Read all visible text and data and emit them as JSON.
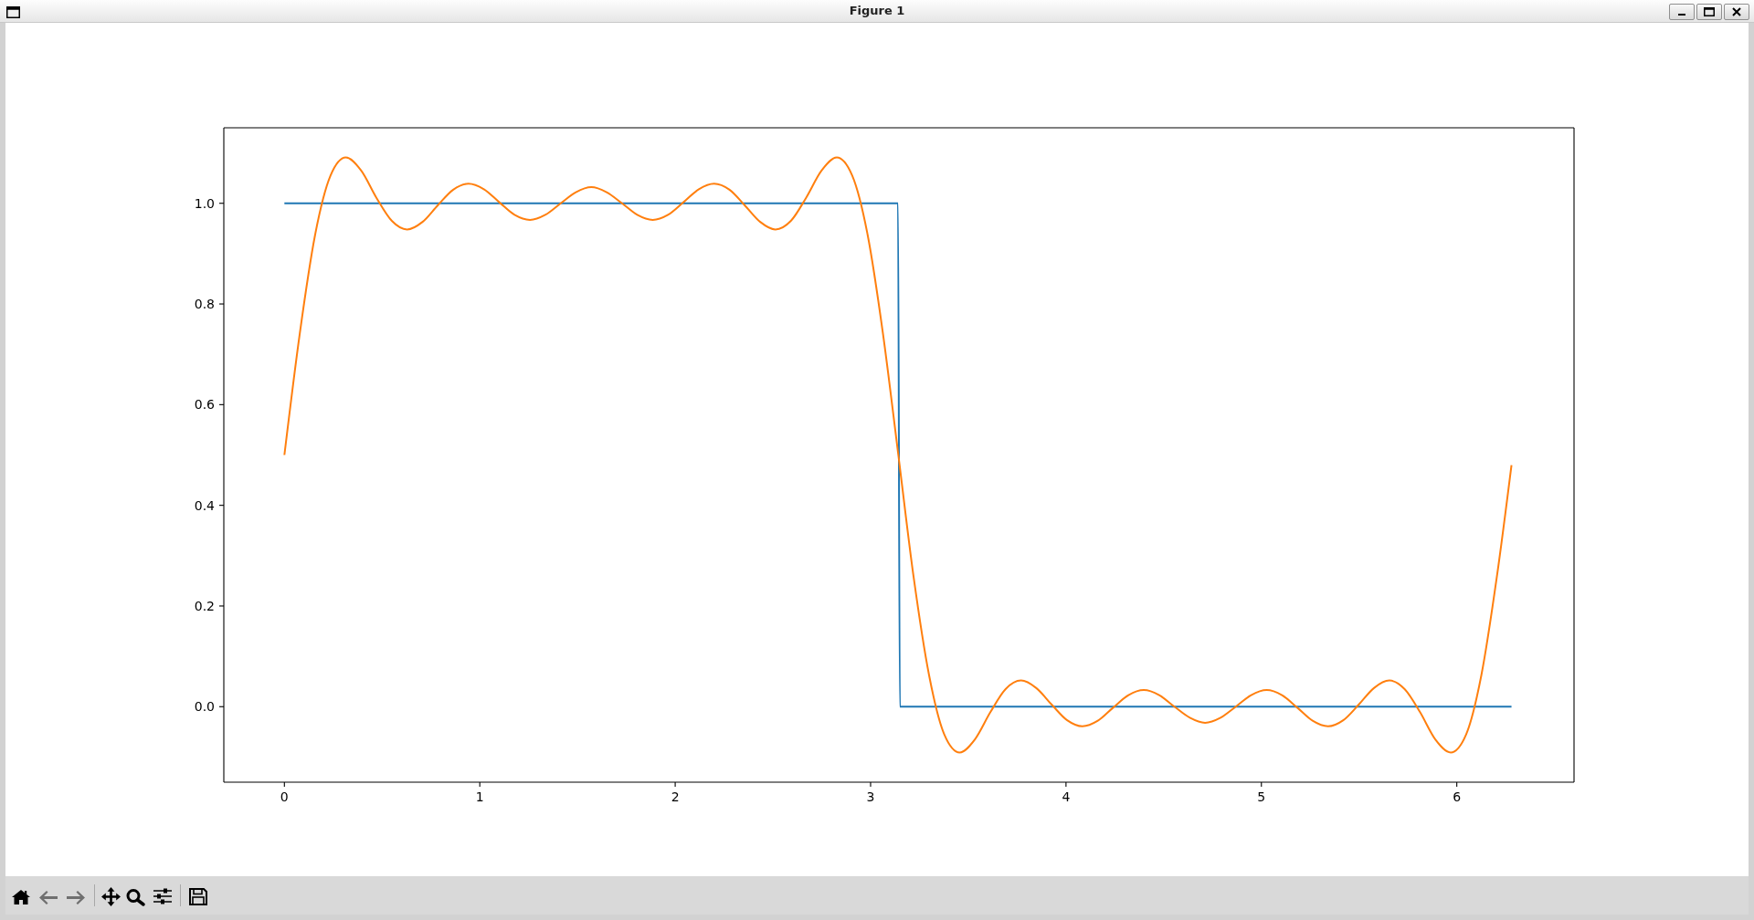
{
  "chart_data": {
    "type": "line",
    "title": "Figure 1",
    "xlim": [
      -0.31,
      6.6
    ],
    "xticks": [
      0,
      1,
      2,
      3,
      4,
      5,
      6
    ],
    "ylim": [
      -0.15,
      1.15
    ],
    "yticks": [
      {
        "value": 0,
        "label": "0.0"
      },
      {
        "value": 0.2,
        "label": "0.2"
      },
      {
        "value": 0.4,
        "label": "0.4"
      },
      {
        "value": 0.6,
        "label": "0.6"
      },
      {
        "value": 0.8,
        "label": "0.8"
      },
      {
        "value": 1,
        "label": "1.0"
      }
    ],
    "series": [
      {
        "color": "#1f77b4",
        "x": [
          0,
          3.14,
          3.15,
          6.28
        ],
        "values": [
          1,
          1,
          0,
          0
        ]
      },
      {
        "color": "#ff7f0e",
        "x": [
          0,
          0.079,
          0.157,
          0.236,
          0.314,
          0.393,
          0.471,
          0.55,
          0.628,
          0.707,
          0.785,
          0.864,
          0.942,
          1.021,
          1.1,
          1.178,
          1.257,
          1.335,
          1.414,
          1.492,
          1.571,
          1.649,
          1.728,
          1.806,
          1.885,
          1.963,
          2.042,
          2.121,
          2.199,
          2.278,
          2.356,
          2.435,
          2.513,
          2.592,
          2.67,
          2.749,
          2.827,
          2.906,
          2.985,
          3.063,
          3.142,
          3.22,
          3.299,
          3.377,
          3.456,
          3.534,
          3.613,
          3.691,
          3.77,
          3.848,
          3.927,
          4.006,
          4.084,
          4.163,
          4.241,
          4.32,
          4.398,
          4.477,
          4.555,
          4.634,
          4.712,
          4.791,
          4.869,
          4.948,
          5.027,
          5.105,
          5.184,
          5.262,
          5.341,
          5.419,
          5.498,
          5.576,
          5.655,
          5.733,
          5.812,
          5.89,
          5.969,
          6.048,
          6.126,
          6.205,
          6.28
        ],
        "values": [
          0.5,
          0.742,
          0.937,
          1.055,
          1.091,
          1.065,
          1.011,
          0.965,
          0.948,
          0.963,
          0.996,
          1.027,
          1.039,
          1.028,
          1.002,
          0.977,
          0.967,
          0.977,
          1.0,
          1.022,
          1.032,
          1.022,
          1.0,
          0.977,
          0.967,
          0.977,
          1.002,
          1.028,
          1.039,
          1.027,
          0.996,
          0.963,
          0.948,
          0.965,
          1.011,
          1.065,
          1.091,
          1.055,
          0.937,
          0.742,
          0.5,
          0.258,
          0.063,
          -0.055,
          -0.091,
          -0.065,
          -0.011,
          0.035,
          0.052,
          0.037,
          0.004,
          -0.027,
          -0.039,
          -0.028,
          -0.002,
          0.023,
          0.033,
          0.023,
          0.0,
          -0.022,
          -0.032,
          -0.022,
          0.0,
          0.023,
          0.033,
          0.023,
          -0.002,
          -0.028,
          -0.039,
          -0.027,
          0.004,
          0.037,
          0.052,
          0.035,
          -0.011,
          -0.065,
          -0.091,
          -0.055,
          0.063,
          0.258,
          0.48
        ]
      }
    ]
  }
}
